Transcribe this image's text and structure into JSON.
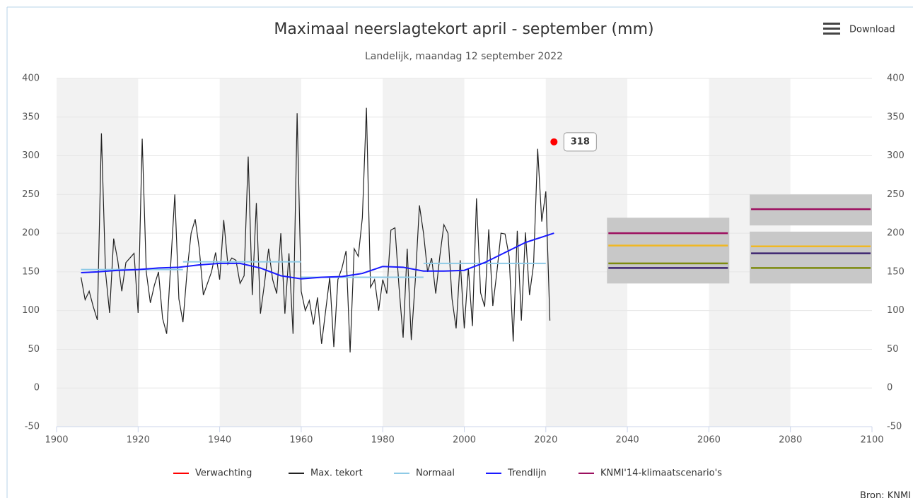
{
  "menu": "Download",
  "source": "Bron: KNMI",
  "chart_data": {
    "type": "line",
    "title": "Maximaal neerslagtekort april - september (mm)",
    "subtitle": "Landelijk, maandag 12 september 2022",
    "xlim": [
      1900,
      2100
    ],
    "xticks": [
      1900,
      1920,
      1940,
      1960,
      1980,
      2000,
      2020,
      2040,
      2060,
      2080,
      2100
    ],
    "ylim": [
      -50,
      400
    ],
    "yticks": [
      -50,
      0,
      50,
      100,
      150,
      200,
      250,
      300,
      350,
      400
    ],
    "y2lim": [
      -50,
      400
    ],
    "y2ticks": [
      -50,
      0,
      50,
      100,
      150,
      200,
      250,
      300,
      350,
      400
    ],
    "grid": true,
    "series": [
      {
        "name": "Verwachting",
        "type": "scatter",
        "color": "#ff0000",
        "x": [
          2022
        ],
        "values": [
          318
        ]
      },
      {
        "name": "Max. tekort",
        "type": "line",
        "color": "#222222",
        "x": [
          1906,
          1907,
          1908,
          1909,
          1910,
          1911,
          1912,
          1913,
          1914,
          1915,
          1916,
          1917,
          1918,
          1919,
          1920,
          1921,
          1922,
          1923,
          1924,
          1925,
          1926,
          1927,
          1928,
          1929,
          1930,
          1931,
          1932,
          1933,
          1934,
          1935,
          1936,
          1937,
          1938,
          1939,
          1940,
          1941,
          1942,
          1943,
          1944,
          1945,
          1946,
          1947,
          1948,
          1949,
          1950,
          1951,
          1952,
          1953,
          1954,
          1955,
          1956,
          1957,
          1958,
          1959,
          1960,
          1961,
          1962,
          1963,
          1964,
          1965,
          1966,
          1967,
          1968,
          1969,
          1970,
          1971,
          1972,
          1973,
          1974,
          1975,
          1976,
          1977,
          1978,
          1979,
          1980,
          1981,
          1982,
          1983,
          1984,
          1985,
          1986,
          1987,
          1988,
          1989,
          1990,
          1991,
          1992,
          1993,
          1994,
          1995,
          1996,
          1997,
          1998,
          1999,
          2000,
          2001,
          2002,
          2003,
          2004,
          2005,
          2006,
          2007,
          2008,
          2009,
          2010,
          2011,
          2012,
          2013,
          2014,
          2015,
          2016,
          2017,
          2018,
          2019,
          2020,
          2021
        ],
        "values": [
          143,
          114,
          125,
          105,
          88,
          329,
          150,
          97,
          193,
          165,
          125,
          162,
          168,
          174,
          97,
          322,
          150,
          110,
          133,
          150,
          90,
          70,
          160,
          250,
          115,
          85,
          150,
          200,
          218,
          180,
          120,
          135,
          150,
          175,
          140,
          217,
          160,
          168,
          165,
          135,
          145,
          299,
          120,
          239,
          96,
          135,
          180,
          140,
          122,
          200,
          96,
          174,
          70,
          355,
          125,
          100,
          113,
          82,
          117,
          57,
          100,
          143,
          53,
          140,
          155,
          177,
          46,
          180,
          170,
          220,
          362,
          130,
          140,
          100,
          140,
          122,
          204,
          207,
          130,
          65,
          180,
          62,
          140,
          236,
          200,
          150,
          168,
          122,
          170,
          211,
          200,
          115,
          77,
          165,
          77,
          155,
          80,
          245,
          123,
          105,
          205,
          106,
          150,
          200,
          199,
          170,
          60,
          203,
          87,
          201,
          120,
          160,
          309,
          215,
          254,
          87
        ]
      },
      {
        "name": "Normaal",
        "type": "line",
        "color": "#8ecae6",
        "x": [
          1906,
          1931,
          1931,
          1931,
          1960,
          1960,
          1960,
          1990,
          1990,
          1990,
          2020
        ],
        "values": [
          153,
          153,
          null,
          163,
          163,
          null,
          143,
          143,
          null,
          161,
          161
        ]
      },
      {
        "name": "Trendlijn",
        "type": "line",
        "color": "#1a1aff",
        "x": [
          1906,
          1910,
          1915,
          1920,
          1925,
          1930,
          1935,
          1940,
          1945,
          1950,
          1955,
          1960,
          1965,
          1970,
          1975,
          1980,
          1985,
          1990,
          1995,
          2000,
          2005,
          2010,
          2015,
          2022
        ],
        "values": [
          149,
          150,
          152,
          153,
          155,
          156,
          159,
          161,
          161,
          155,
          145,
          141,
          143,
          144,
          148,
          157,
          156,
          151,
          151,
          152,
          162,
          175,
          188,
          200
        ]
      },
      {
        "name": "KNMI'14-klimaatscenario's",
        "type": "range",
        "color": "#9c0f5f",
        "periods": [
          {
            "x": [
              2035,
              2065
            ],
            "low": 135,
            "high": 220,
            "lines": [
              {
                "value": 200,
                "color": "#9c0f5f"
              },
              {
                "value": 184,
                "color": "#f0b823"
              },
              {
                "value": 161,
                "color": "#7c8a0d"
              },
              {
                "value": 155,
                "color": "#3d2570"
              }
            ]
          },
          {
            "x": [
              2070,
              2100
            ],
            "low": 210,
            "high": 250,
            "lines": [
              {
                "value": 231,
                "color": "#9c0f5f"
              }
            ]
          },
          {
            "x": [
              2070,
              2100
            ],
            "low": 135,
            "high": 202,
            "lines": [
              {
                "value": 183,
                "color": "#f0b823"
              },
              {
                "value": 174,
                "color": "#3d2570"
              },
              {
                "value": 155,
                "color": "#7c8a0d"
              }
            ]
          }
        ]
      }
    ]
  }
}
